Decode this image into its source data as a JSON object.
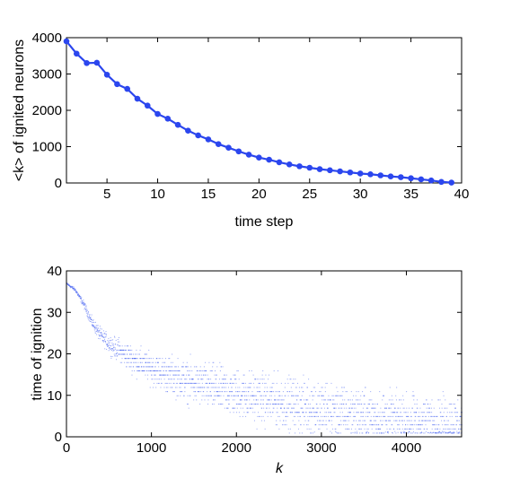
{
  "colors": {
    "series": "#2b46ee",
    "axis": "#000000",
    "background": "#ffffff"
  },
  "chart_data": [
    {
      "type": "line",
      "xlabel": "time step",
      "ylabel": "<k> of ignited neurons",
      "xlim": [
        1,
        40
      ],
      "ylim": [
        0,
        4000
      ],
      "xticks": [
        "5",
        "10",
        "15",
        "20",
        "25",
        "30",
        "35",
        "40"
      ],
      "xtick_values": [
        5,
        10,
        15,
        20,
        25,
        30,
        35,
        40
      ],
      "yticks": [
        "0",
        "1000",
        "2000",
        "3000",
        "4000"
      ],
      "ytick_values": [
        0,
        1000,
        2000,
        3000,
        4000
      ],
      "marker": "circle",
      "grid": false,
      "x": [
        1,
        2,
        3,
        4,
        5,
        6,
        7,
        8,
        9,
        10,
        11,
        12,
        13,
        14,
        15,
        16,
        17,
        18,
        19,
        20,
        21,
        22,
        23,
        24,
        25,
        26,
        27,
        28,
        29,
        30,
        31,
        32,
        33,
        34,
        35,
        36,
        37,
        38,
        39
      ],
      "y": [
        3900,
        3560,
        3300,
        3310,
        2980,
        2720,
        2590,
        2320,
        2130,
        1900,
        1770,
        1600,
        1440,
        1310,
        1200,
        1070,
        970,
        870,
        780,
        700,
        640,
        570,
        510,
        460,
        420,
        380,
        350,
        320,
        290,
        260,
        240,
        210,
        180,
        160,
        130,
        100,
        70,
        30,
        10
      ]
    },
    {
      "type": "scatter",
      "xlabel": "k",
      "ylabel": "time of ignition",
      "xlim": [
        0,
        4650
      ],
      "ylim": [
        0,
        40
      ],
      "xticks": [
        "0",
        "1000",
        "2000",
        "3000",
        "4000"
      ],
      "xtick_values": [
        0,
        1000,
        2000,
        3000,
        4000
      ],
      "yticks": [
        "0",
        "10",
        "20",
        "30",
        "40"
      ],
      "ytick_values": [
        0,
        10,
        20,
        30,
        40
      ],
      "grid": false,
      "trend": {
        "x": [
          0,
          100,
          200,
          300,
          400,
          500,
          600,
          800,
          1000,
          1200,
          1500,
          2000,
          2500,
          3000,
          3500,
          4000,
          4650
        ],
        "y": [
          37,
          35.5,
          32,
          27.5,
          24.5,
          22.5,
          21,
          18.5,
          16.5,
          15,
          13,
          10.5,
          8.5,
          6.8,
          5.3,
          4.2,
          3.4
        ],
        "spread": [
          0.2,
          0.3,
          0.6,
          0.9,
          1.2,
          1.5,
          1.8,
          2.2,
          2.6,
          3,
          3.5,
          4,
          4.2,
          4.3,
          4.3,
          4.3,
          4.3
        ]
      },
      "points_per_k": 1
    }
  ]
}
